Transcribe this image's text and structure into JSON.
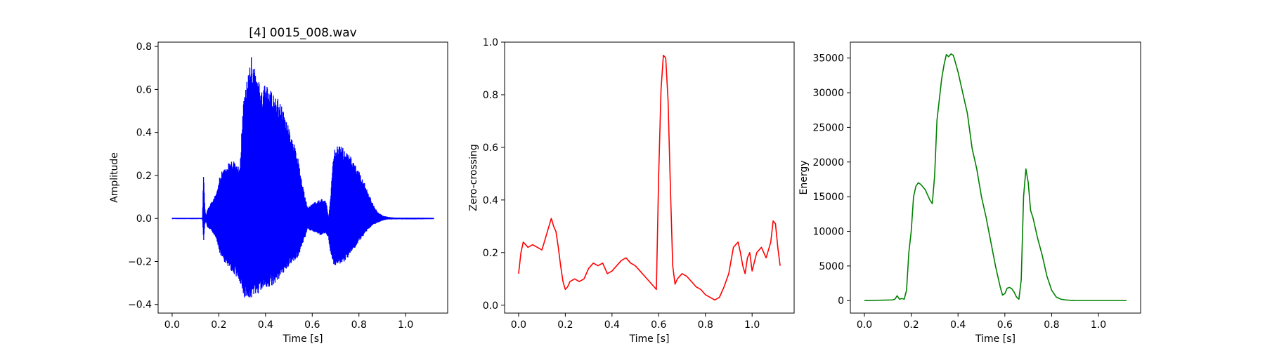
{
  "chart_data": [
    {
      "type": "line",
      "title": "[4] 0015_008.wav",
      "xlabel": "Time [s]",
      "ylabel": "Amplitude",
      "xlim": [
        -0.06,
        1.18
      ],
      "ylim": [
        -0.44,
        0.82
      ],
      "xticks": [
        0.0,
        0.2,
        0.4,
        0.6,
        0.8,
        1.0
      ],
      "xtick_labels": [
        "0.0",
        "0.2",
        "0.4",
        "0.6",
        "0.8",
        "1.0"
      ],
      "yticks": [
        -0.4,
        -0.2,
        0.0,
        0.2,
        0.4,
        0.6,
        0.8
      ],
      "ytick_labels": [
        "−0.4",
        "−0.2",
        "0.0",
        "0.2",
        "0.4",
        "0.6",
        "0.8"
      ],
      "color": "#0000ff",
      "series": [
        {
          "style": "waveform",
          "envelope": {
            "x": [
              0.0,
              0.13,
              0.135,
              0.14,
              0.145,
              0.15,
              0.17,
              0.19,
              0.2,
              0.22,
              0.25,
              0.27,
              0.29,
              0.3,
              0.31,
              0.33,
              0.34,
              0.36,
              0.38,
              0.4,
              0.42,
              0.44,
              0.46,
              0.48,
              0.5,
              0.52,
              0.54,
              0.56,
              0.58,
              0.6,
              0.62,
              0.64,
              0.66,
              0.67,
              0.68,
              0.69,
              0.7,
              0.72,
              0.74,
              0.76,
              0.78,
              0.8,
              0.82,
              0.84,
              0.86,
              0.88,
              0.9,
              0.92,
              0.95,
              1.0,
              1.05,
              1.12
            ],
            "upper": [
              0.003,
              0.003,
              0.24,
              0.05,
              0.01,
              0.04,
              0.08,
              0.12,
              0.18,
              0.24,
              0.27,
              0.27,
              0.25,
              0.45,
              0.6,
              0.7,
              0.76,
              0.67,
              0.62,
              0.62,
              0.6,
              0.57,
              0.55,
              0.5,
              0.42,
              0.36,
              0.28,
              0.15,
              0.05,
              0.07,
              0.08,
              0.09,
              0.08,
              0.0,
              0.12,
              0.3,
              0.34,
              0.34,
              0.32,
              0.3,
              0.26,
              0.22,
              0.18,
              0.12,
              0.07,
              0.03,
              0.015,
              0.008,
              0.004,
              0.004,
              0.004,
              0.003
            ],
            "lower": [
              -0.003,
              -0.003,
              -0.11,
              -0.03,
              -0.01,
              -0.04,
              -0.06,
              -0.1,
              -0.15,
              -0.2,
              -0.24,
              -0.27,
              -0.3,
              -0.33,
              -0.37,
              -0.38,
              -0.39,
              -0.36,
              -0.34,
              -0.33,
              -0.32,
              -0.3,
              -0.28,
              -0.25,
              -0.22,
              -0.2,
              -0.18,
              -0.12,
              -0.05,
              -0.06,
              -0.07,
              -0.08,
              -0.07,
              -0.1,
              -0.17,
              -0.21,
              -0.22,
              -0.21,
              -0.2,
              -0.17,
              -0.14,
              -0.11,
              -0.08,
              -0.05,
              -0.03,
              -0.02,
              -0.01,
              -0.005,
              -0.004,
              -0.004,
              -0.004,
              -0.003
            ]
          }
        }
      ]
    },
    {
      "type": "line",
      "title": "",
      "xlabel": "Time [s]",
      "ylabel": "Zero-crossing",
      "xlim": [
        -0.06,
        1.18
      ],
      "ylim": [
        -0.03,
        1.0
      ],
      "xticks": [
        0.0,
        0.2,
        0.4,
        0.6,
        0.8,
        1.0
      ],
      "xtick_labels": [
        "0.0",
        "0.2",
        "0.4",
        "0.6",
        "0.8",
        "1.0"
      ],
      "yticks": [
        0.0,
        0.2,
        0.4,
        0.6,
        0.8,
        1.0
      ],
      "ytick_labels": [
        "0.0",
        "0.2",
        "0.4",
        "0.6",
        "0.8",
        "1.0"
      ],
      "color": "#ff0000",
      "series": [
        {
          "x": [
            0.0,
            0.01,
            0.02,
            0.04,
            0.06,
            0.08,
            0.1,
            0.12,
            0.13,
            0.14,
            0.15,
            0.16,
            0.17,
            0.18,
            0.19,
            0.2,
            0.21,
            0.22,
            0.24,
            0.26,
            0.28,
            0.3,
            0.32,
            0.34,
            0.36,
            0.38,
            0.4,
            0.42,
            0.44,
            0.46,
            0.48,
            0.5,
            0.52,
            0.54,
            0.56,
            0.58,
            0.59,
            0.6,
            0.61,
            0.62,
            0.63,
            0.64,
            0.65,
            0.66,
            0.67,
            0.68,
            0.69,
            0.7,
            0.72,
            0.74,
            0.76,
            0.78,
            0.8,
            0.82,
            0.84,
            0.86,
            0.88,
            0.9,
            0.92,
            0.94,
            0.95,
            0.96,
            0.97,
            0.98,
            0.99,
            1.0,
            1.02,
            1.04,
            1.06,
            1.08,
            1.09,
            1.1,
            1.11,
            1.12
          ],
          "y": [
            0.12,
            0.2,
            0.24,
            0.22,
            0.23,
            0.22,
            0.21,
            0.27,
            0.3,
            0.33,
            0.3,
            0.28,
            0.22,
            0.15,
            0.09,
            0.06,
            0.07,
            0.09,
            0.1,
            0.09,
            0.1,
            0.14,
            0.16,
            0.15,
            0.16,
            0.12,
            0.13,
            0.15,
            0.17,
            0.18,
            0.16,
            0.15,
            0.13,
            0.11,
            0.09,
            0.07,
            0.06,
            0.5,
            0.82,
            0.95,
            0.94,
            0.78,
            0.45,
            0.15,
            0.08,
            0.1,
            0.11,
            0.12,
            0.11,
            0.09,
            0.07,
            0.06,
            0.04,
            0.03,
            0.02,
            0.03,
            0.07,
            0.12,
            0.22,
            0.24,
            0.2,
            0.15,
            0.12,
            0.18,
            0.2,
            0.13,
            0.2,
            0.22,
            0.18,
            0.24,
            0.32,
            0.31,
            0.22,
            0.15
          ]
        }
      ]
    },
    {
      "type": "line",
      "title": "",
      "xlabel": "Time [s]",
      "ylabel": "Energy",
      "xlim": [
        -0.06,
        1.18
      ],
      "ylim": [
        -1800,
        37300
      ],
      "xticks": [
        0.0,
        0.2,
        0.4,
        0.6,
        0.8,
        1.0
      ],
      "xtick_labels": [
        "0.0",
        "0.2",
        "0.4",
        "0.6",
        "0.8",
        "1.0"
      ],
      "yticks": [
        0,
        5000,
        10000,
        15000,
        20000,
        25000,
        30000,
        35000
      ],
      "ytick_labels": [
        "0",
        "5000",
        "10000",
        "15000",
        "20000",
        "25000",
        "30000",
        "35000"
      ],
      "color": "#008000",
      "series": [
        {
          "x": [
            0.0,
            0.12,
            0.13,
            0.14,
            0.15,
            0.16,
            0.17,
            0.18,
            0.19,
            0.2,
            0.21,
            0.22,
            0.23,
            0.24,
            0.26,
            0.28,
            0.29,
            0.3,
            0.31,
            0.32,
            0.33,
            0.34,
            0.35,
            0.36,
            0.37,
            0.38,
            0.4,
            0.42,
            0.44,
            0.46,
            0.48,
            0.5,
            0.52,
            0.54,
            0.56,
            0.58,
            0.59,
            0.6,
            0.61,
            0.62,
            0.63,
            0.64,
            0.65,
            0.66,
            0.67,
            0.68,
            0.69,
            0.7,
            0.71,
            0.72,
            0.74,
            0.76,
            0.78,
            0.8,
            0.82,
            0.84,
            0.86,
            0.88,
            0.9,
            0.95,
            1.0,
            1.05,
            1.12
          ],
          "y": [
            0,
            100,
            200,
            700,
            200,
            300,
            200,
            1500,
            7000,
            10000,
            15000,
            16500,
            17000,
            16800,
            16000,
            14500,
            14000,
            18000,
            26000,
            29000,
            32000,
            34000,
            35500,
            35200,
            35600,
            35400,
            33000,
            30000,
            27000,
            22000,
            19000,
            15000,
            12000,
            8500,
            5000,
            2000,
            800,
            1000,
            1800,
            1900,
            1700,
            1200,
            500,
            200,
            3000,
            15000,
            19000,
            17000,
            13000,
            12000,
            9000,
            6500,
            3500,
            1500,
            500,
            200,
            100,
            50,
            20,
            10,
            10,
            10,
            10
          ]
        }
      ]
    }
  ]
}
